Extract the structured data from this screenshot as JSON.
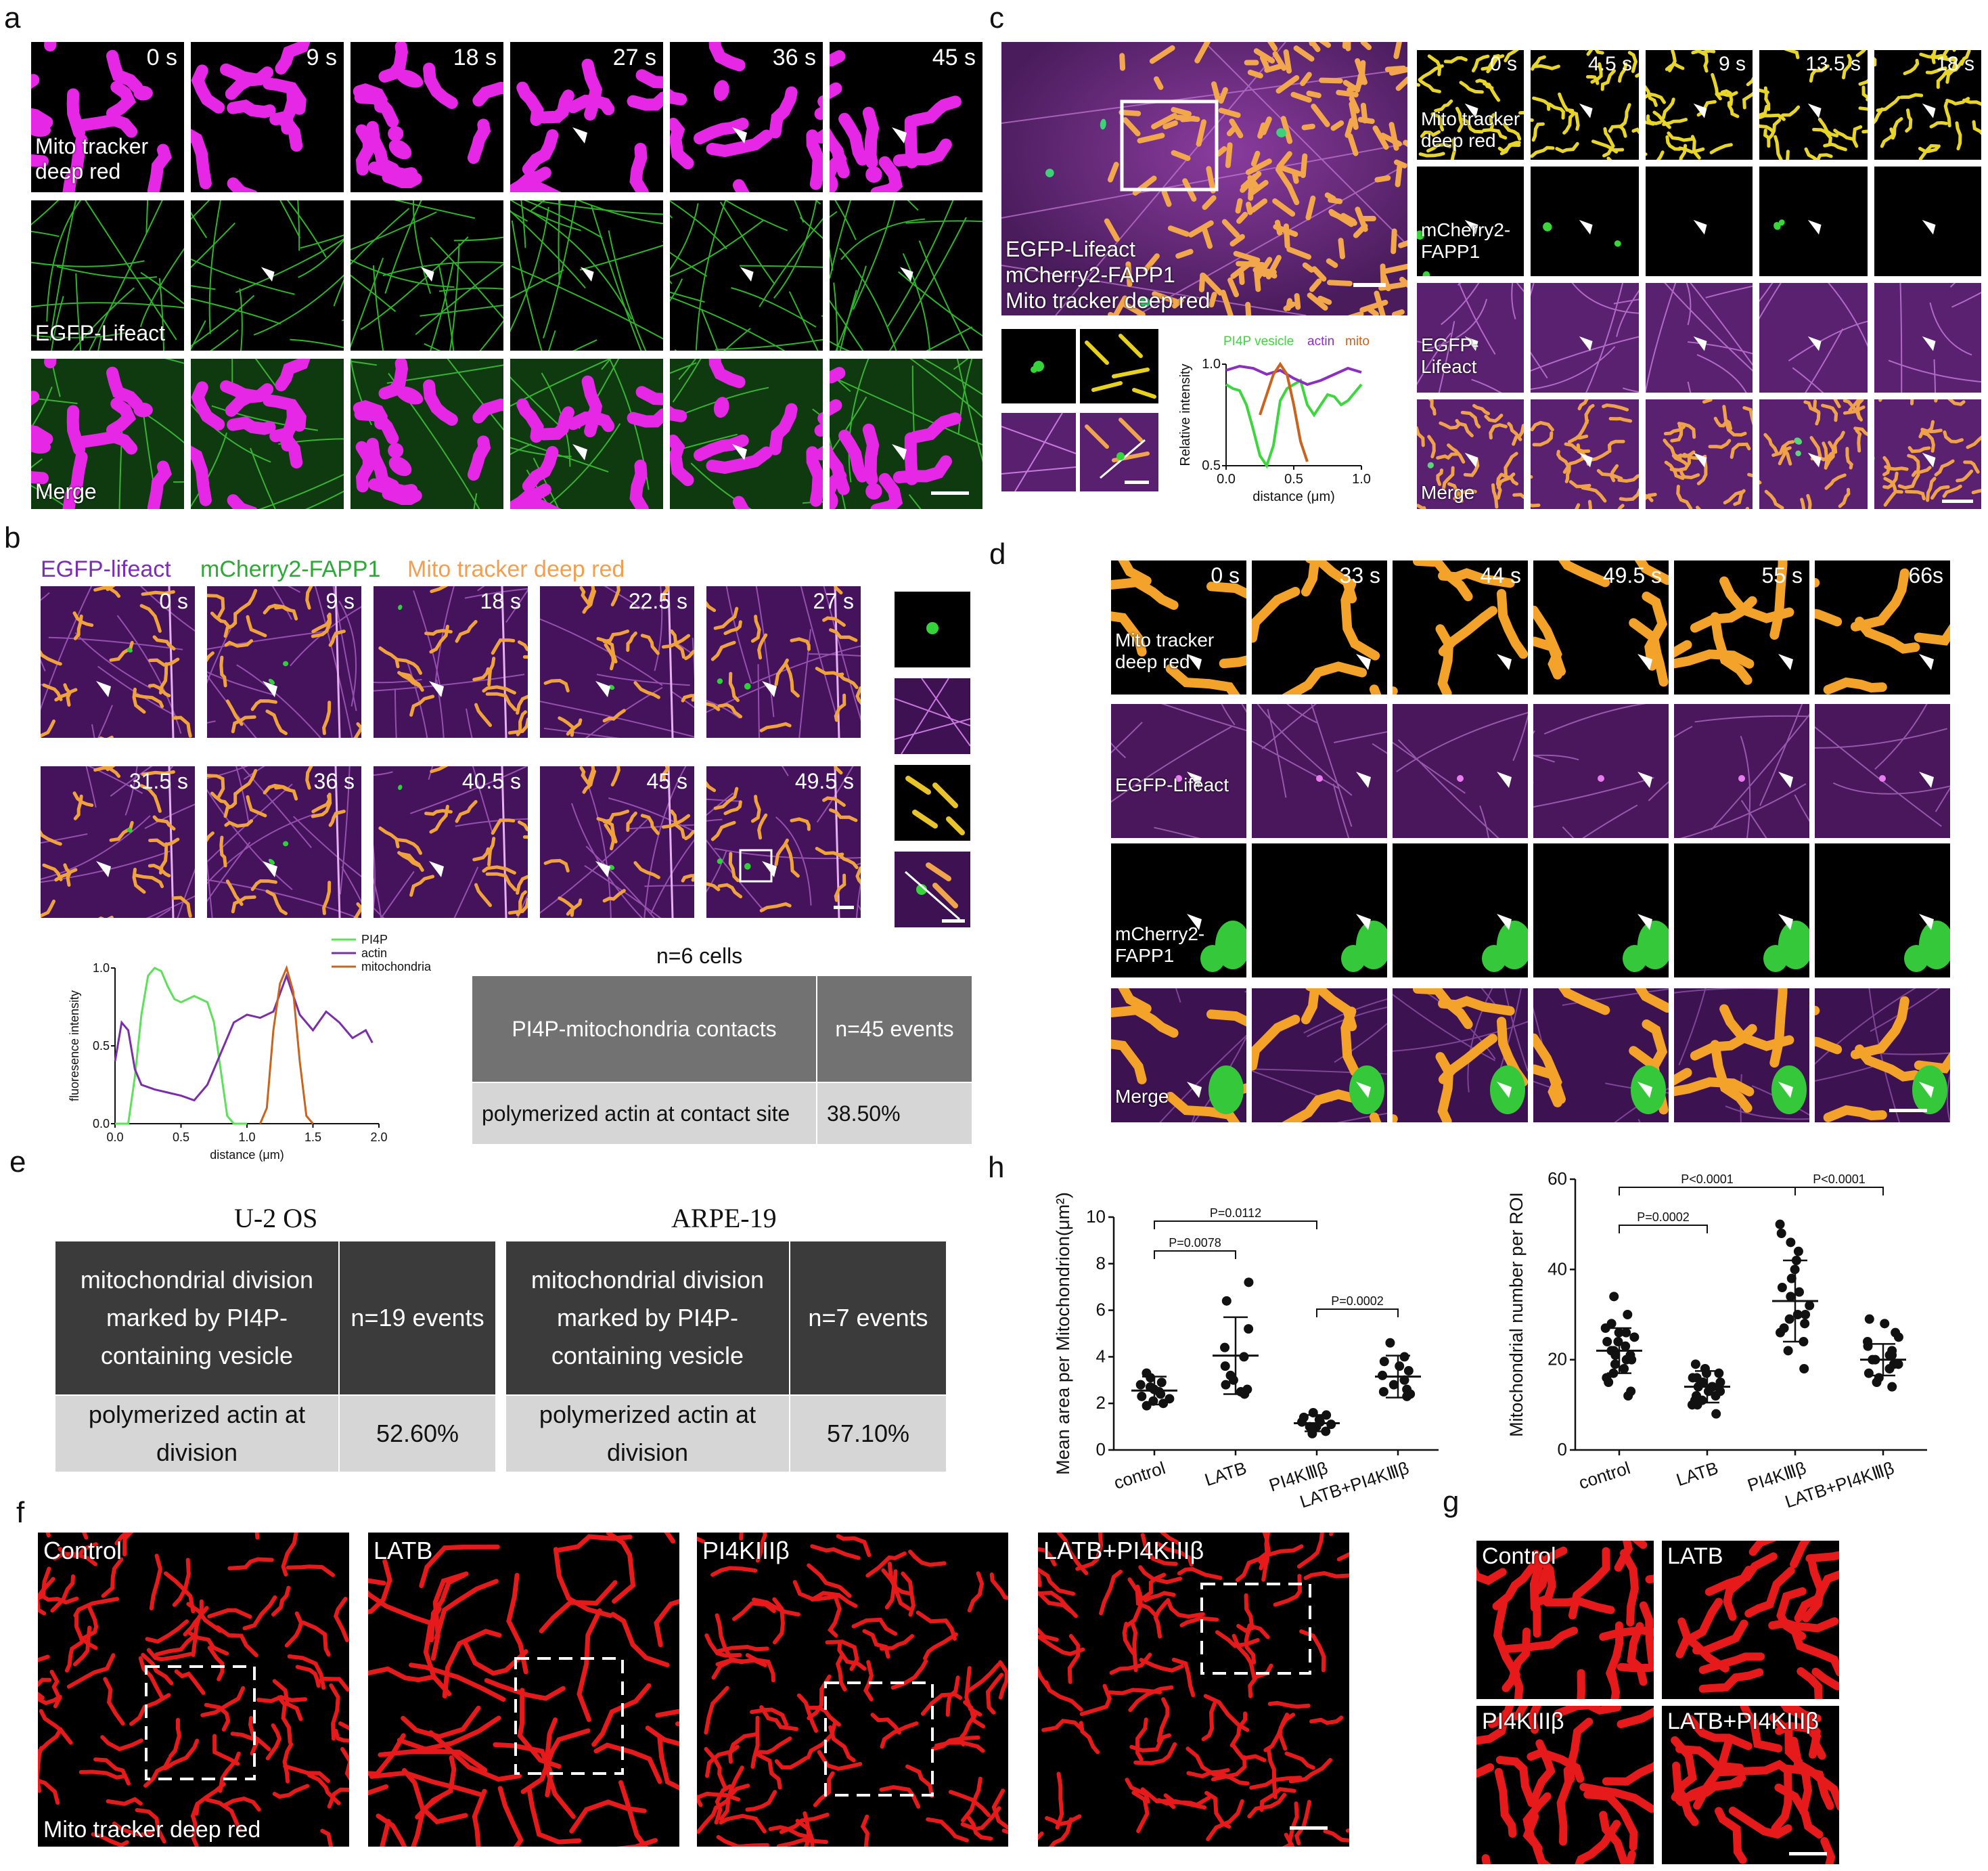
{
  "panels": {
    "a": "a",
    "b": "b",
    "c": "c",
    "d": "d",
    "e": "e",
    "f": "f",
    "g": "g",
    "h": "h"
  },
  "panel_a": {
    "times": [
      "0 s",
      "9 s",
      "18 s",
      "27 s",
      "36 s",
      "45 s"
    ],
    "rows": [
      "Mito tracker deep red",
      "EGFP-Lifeact",
      "Merge"
    ]
  },
  "panel_b": {
    "legend": [
      "EGFP-lifeact",
      "mCherry2-FAPP1",
      "Mito tracker deep red"
    ],
    "legend_colors": [
      "#7a2fb5",
      "#2fa838",
      "#f0a050"
    ],
    "times_row1": [
      "0 s",
      "9 s",
      "18 s",
      "22.5 s",
      "27 s"
    ],
    "times_row2": [
      "31.5 s",
      "36 s",
      "40.5 s",
      "45 s",
      "49.5 s"
    ],
    "table_title": "n=6 cells",
    "table": [
      [
        "PI4P-mitochondria contacts",
        "n=45 events"
      ],
      [
        "polymerized actin at contact site",
        "38.50%"
      ]
    ]
  },
  "panel_c": {
    "big_label": [
      "EGFP-Lifeact",
      "mCherry2-FAPP1",
      "Mito tracker deep red"
    ],
    "times": [
      "0 s",
      "4.5 s",
      "9 s",
      "13.5 s",
      "18 s"
    ],
    "rows": [
      "Mito tracker deep red",
      "mCherry2-FAPP1",
      "EGFP-Lifeact",
      "Merge"
    ],
    "legend": [
      "PI4P vesicle",
      "actin",
      "mito"
    ]
  },
  "panel_d": {
    "times": [
      "0 s",
      "33 s",
      "44 s",
      "49.5 s",
      "55 s",
      "66s"
    ],
    "rows": [
      "Mito tracker deep red",
      "EGFP-Lifeact",
      "mCherry2-FAPP1",
      "Merge"
    ]
  },
  "panel_e": {
    "tables": [
      {
        "title": "U-2 OS",
        "rows": [
          [
            "mitochondrial division marked by PI4P-containing vesicle",
            "n=19 events"
          ],
          [
            "polymerized actin at division",
            "52.60%"
          ]
        ]
      },
      {
        "title": "ARPE-19",
        "rows": [
          [
            "mitochondrial division marked by PI4P-containing vesicle",
            "n=7 events"
          ],
          [
            "polymerized actin at division",
            "57.10%"
          ]
        ]
      }
    ]
  },
  "panel_f": {
    "labels": [
      "Control",
      "LATB",
      "PI4KIIIβ",
      "LATB+PI4KIIIβ"
    ],
    "stain": "Mito tracker deep red"
  },
  "panel_g": {
    "labels": [
      "Control",
      "LATB",
      "PI4KIIIβ",
      "LATB+PI4KIIIβ"
    ]
  },
  "chart_data": [
    {
      "id": "b-profile",
      "type": "line",
      "xlabel": "distance (μm)",
      "ylabel": "fluoresence intensity",
      "xlim": [
        0,
        2.0
      ],
      "ylim": [
        0,
        1.0
      ],
      "xticks": [
        "0.0",
        "0.5",
        "1.0",
        "1.5",
        "2.0"
      ],
      "yticks": [
        "0.0",
        "0.5",
        "1.0"
      ],
      "legend": "top-right",
      "series": [
        {
          "name": "PI4P",
          "color": "#5ee05a",
          "x": [
            0,
            0.05,
            0.1,
            0.15,
            0.2,
            0.25,
            0.3,
            0.35,
            0.4,
            0.45,
            0.5,
            0.55,
            0.6,
            0.65,
            0.7,
            0.75,
            0.8,
            0.85,
            0.9,
            0.95,
            1.0
          ],
          "y": [
            0.0,
            0.0,
            0.0,
            0.3,
            0.7,
            0.95,
            1.0,
            0.98,
            0.88,
            0.8,
            0.78,
            0.8,
            0.82,
            0.8,
            0.78,
            0.65,
            0.35,
            0.05,
            0.0,
            0.0,
            0.0
          ]
        },
        {
          "name": "actin",
          "color": "#7a2fa8",
          "x": [
            0,
            0.05,
            0.1,
            0.15,
            0.2,
            0.3,
            0.4,
            0.5,
            0.6,
            0.7,
            0.8,
            0.9,
            1.0,
            1.1,
            1.2,
            1.3,
            1.4,
            1.5,
            1.6,
            1.7,
            1.8,
            1.9,
            1.95
          ],
          "y": [
            0.4,
            0.65,
            0.6,
            0.35,
            0.25,
            0.22,
            0.2,
            0.18,
            0.15,
            0.25,
            0.45,
            0.65,
            0.7,
            0.68,
            0.72,
            0.95,
            0.7,
            0.6,
            0.72,
            0.65,
            0.55,
            0.6,
            0.52
          ]
        },
        {
          "name": "mitochondria",
          "color": "#c8641e",
          "x": [
            1.1,
            1.15,
            1.2,
            1.25,
            1.3,
            1.35,
            1.4,
            1.45,
            1.5
          ],
          "y": [
            0.0,
            0.1,
            0.6,
            0.9,
            1.0,
            0.85,
            0.4,
            0.05,
            0.0
          ]
        }
      ]
    },
    {
      "id": "c-profile",
      "type": "line",
      "xlabel": "distance (μm)",
      "ylabel": "Relative intensity",
      "xlim": [
        0,
        1.0
      ],
      "ylim": [
        0.5,
        1.0
      ],
      "xticks": [
        "0.0",
        "0.5",
        "1.0"
      ],
      "yticks": [
        "0.5",
        "1.0"
      ],
      "series": [
        {
          "name": "PI4P vesicle",
          "color": "#3ed63e",
          "x": [
            0,
            0.05,
            0.1,
            0.15,
            0.2,
            0.25,
            0.3,
            0.35,
            0.4,
            0.45,
            0.5,
            0.55,
            0.6,
            0.65,
            0.7,
            0.75,
            0.8,
            0.85,
            0.9,
            0.95,
            1.0
          ],
          "y": [
            0.9,
            0.88,
            0.87,
            0.8,
            0.68,
            0.55,
            0.5,
            0.6,
            0.82,
            0.88,
            0.9,
            0.92,
            0.8,
            0.75,
            0.8,
            0.85,
            0.84,
            0.8,
            0.82,
            0.86,
            0.9
          ]
        },
        {
          "name": "actin",
          "color": "#8a2fc0",
          "x": [
            0,
            0.1,
            0.2,
            0.3,
            0.4,
            0.5,
            0.6,
            0.7,
            0.8,
            0.9,
            1.0
          ],
          "y": [
            0.97,
            0.99,
            0.98,
            0.95,
            0.97,
            0.93,
            0.9,
            0.92,
            0.95,
            0.98,
            0.96
          ]
        },
        {
          "name": "mito",
          "color": "#c8641e",
          "x": [
            0.25,
            0.3,
            0.35,
            0.4,
            0.45,
            0.5,
            0.55,
            0.6
          ],
          "y": [
            0.75,
            0.85,
            0.95,
            1.0,
            0.95,
            0.8,
            0.62,
            0.52
          ]
        }
      ]
    },
    {
      "id": "h-area",
      "type": "scatter",
      "ylabel": "Mean area per Mitochondrion(μm²)",
      "categories": [
        "control",
        "LATB",
        "PI4KⅢβ",
        "LATB+PI4KⅢβ"
      ],
      "ylim": [
        0,
        10
      ],
      "yticks": [
        "0",
        "2",
        "4",
        "6",
        "8",
        "10"
      ],
      "means": [
        2.55,
        4.05,
        1.15,
        3.15
      ],
      "sds": [
        0.6,
        1.65,
        0.35,
        0.9
      ],
      "points": [
        [
          2.0,
          2.3,
          2.5,
          2.9,
          3.3,
          2.1,
          2.6,
          1.9,
          2.7,
          3.1,
          2.4,
          2.2,
          2.8
        ],
        [
          2.4,
          2.8,
          3.2,
          4.0,
          5.2,
          6.4,
          7.2,
          3.6,
          2.6,
          3.0,
          4.4,
          2.5
        ],
        [
          0.8,
          1.0,
          1.2,
          1.5,
          1.3,
          1.1,
          0.9,
          1.4,
          1.6,
          1.0,
          1.2,
          0.7
        ],
        [
          2.3,
          2.8,
          3.0,
          3.4,
          4.6,
          4.0,
          2.6,
          3.2,
          2.4,
          3.6,
          3.8,
          2.5
        ]
      ],
      "comparisons": [
        {
          "from": 0,
          "to": 1,
          "label": "P=0.0078"
        },
        {
          "from": 0,
          "to": 2,
          "label": "P=0.0112"
        },
        {
          "from": 2,
          "to": 3,
          "label": "P=0.0002"
        }
      ]
    },
    {
      "id": "h-number",
      "type": "scatter",
      "ylabel": "Mitochondrial number per ROI",
      "categories": [
        "control",
        "LATB",
        "PI4KⅢβ",
        "LATB+PI4KⅢβ"
      ],
      "ylim": [
        0,
        60
      ],
      "yticks": [
        "0",
        "20",
        "40",
        "60"
      ],
      "means": [
        22,
        14,
        33,
        20
      ],
      "sds": [
        5,
        3.5,
        9,
        3.5
      ],
      "points": [
        [
          12,
          16,
          18,
          20,
          22,
          24,
          26,
          28,
          19,
          21,
          23,
          25,
          27,
          15,
          17,
          20,
          22,
          24,
          26,
          30,
          13,
          21,
          34
        ],
        [
          8,
          10,
          11,
          12,
          13,
          14,
          15,
          16,
          17,
          18,
          12,
          14,
          16,
          11,
          13,
          15,
          17,
          19,
          10,
          14
        ],
        [
          18,
          22,
          26,
          28,
          30,
          32,
          34,
          36,
          38,
          40,
          44,
          46,
          50,
          48,
          24,
          30,
          35,
          27,
          29,
          42
        ],
        [
          14,
          16,
          18,
          19,
          20,
          21,
          22,
          24,
          26,
          28,
          29,
          17,
          19,
          23,
          25,
          15,
          21,
          20
        ]
      ],
      "comparisons": [
        {
          "from": 0,
          "to": 1,
          "label": "P=0.0002"
        },
        {
          "from": 0,
          "to": 2,
          "label": "P<0.0001"
        },
        {
          "from": 2,
          "to": 3,
          "label": "P<0.0001"
        }
      ]
    }
  ]
}
